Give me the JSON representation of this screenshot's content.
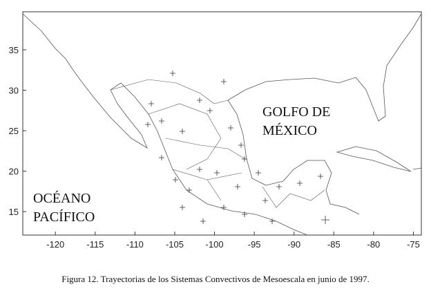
{
  "map": {
    "xlim": [
      -124.1,
      -74
    ],
    "ylim": [
      12.1,
      39.7
    ],
    "xticks": [
      -120,
      -115,
      -110,
      -105,
      -100,
      -95,
      -90,
      -85,
      -80,
      -75
    ],
    "yticks": [
      15,
      20,
      25,
      30,
      35
    ],
    "gulf_label": [
      "GOLFO DE",
      "MÉXICO"
    ],
    "ocean_label": [
      "OCÉANO",
      "PACÍFICO"
    ]
  },
  "caption": "Figura 12. Trayectorias de los Sistemas Convectivos de Mesoescala en junio de 1997."
}
